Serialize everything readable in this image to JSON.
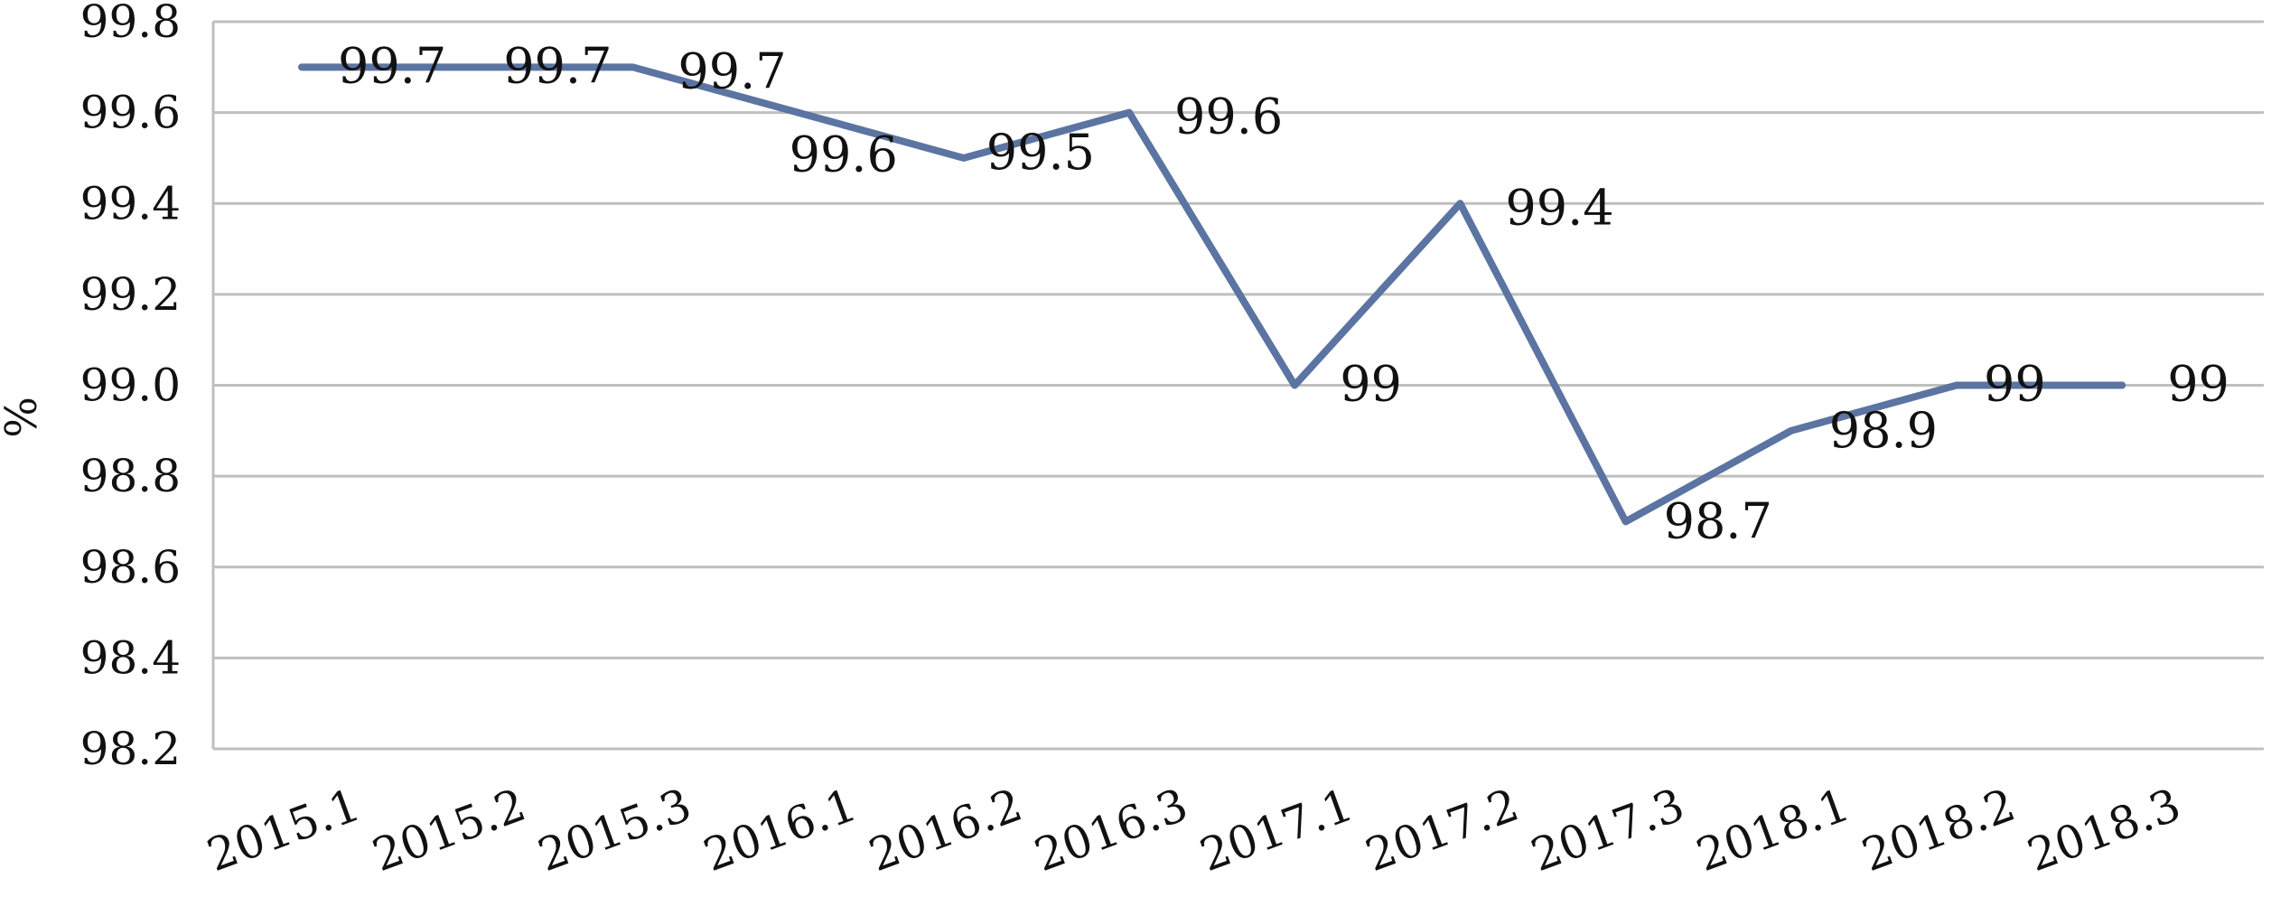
{
  "chart_data": {
    "type": "line",
    "title": "",
    "xlabel": "",
    "ylabel": "%",
    "categories": [
      "2015.1",
      "2015.2",
      "2015.3",
      "2016.1",
      "2016.2",
      "2016.3",
      "2017.1",
      "2017.2",
      "2017.3",
      "2018.1",
      "2018.2",
      "2018.3"
    ],
    "series": [
      {
        "values": [
          99.7,
          99.7,
          99.7,
          99.6,
          99.5,
          99.6,
          99.0,
          99.4,
          98.7,
          98.9,
          99.0,
          99.0
        ],
        "data_labels": [
          "99.7",
          "99.7",
          "99.7",
          "99.6",
          "99.5",
          "99.6",
          "99",
          "99.4",
          "98.7",
          "98.9",
          "99",
          "99"
        ],
        "color": "#5b74a2"
      }
    ],
    "ylim": [
      98.2,
      99.8
    ],
    "yticks": [
      "98.2",
      "98.4",
      "98.6",
      "98.8",
      "99.0",
      "99.2",
      "99.4",
      "99.6",
      "99.8"
    ],
    "grid": true,
    "gridline_color": "#bfbfbf",
    "legend": "none"
  }
}
